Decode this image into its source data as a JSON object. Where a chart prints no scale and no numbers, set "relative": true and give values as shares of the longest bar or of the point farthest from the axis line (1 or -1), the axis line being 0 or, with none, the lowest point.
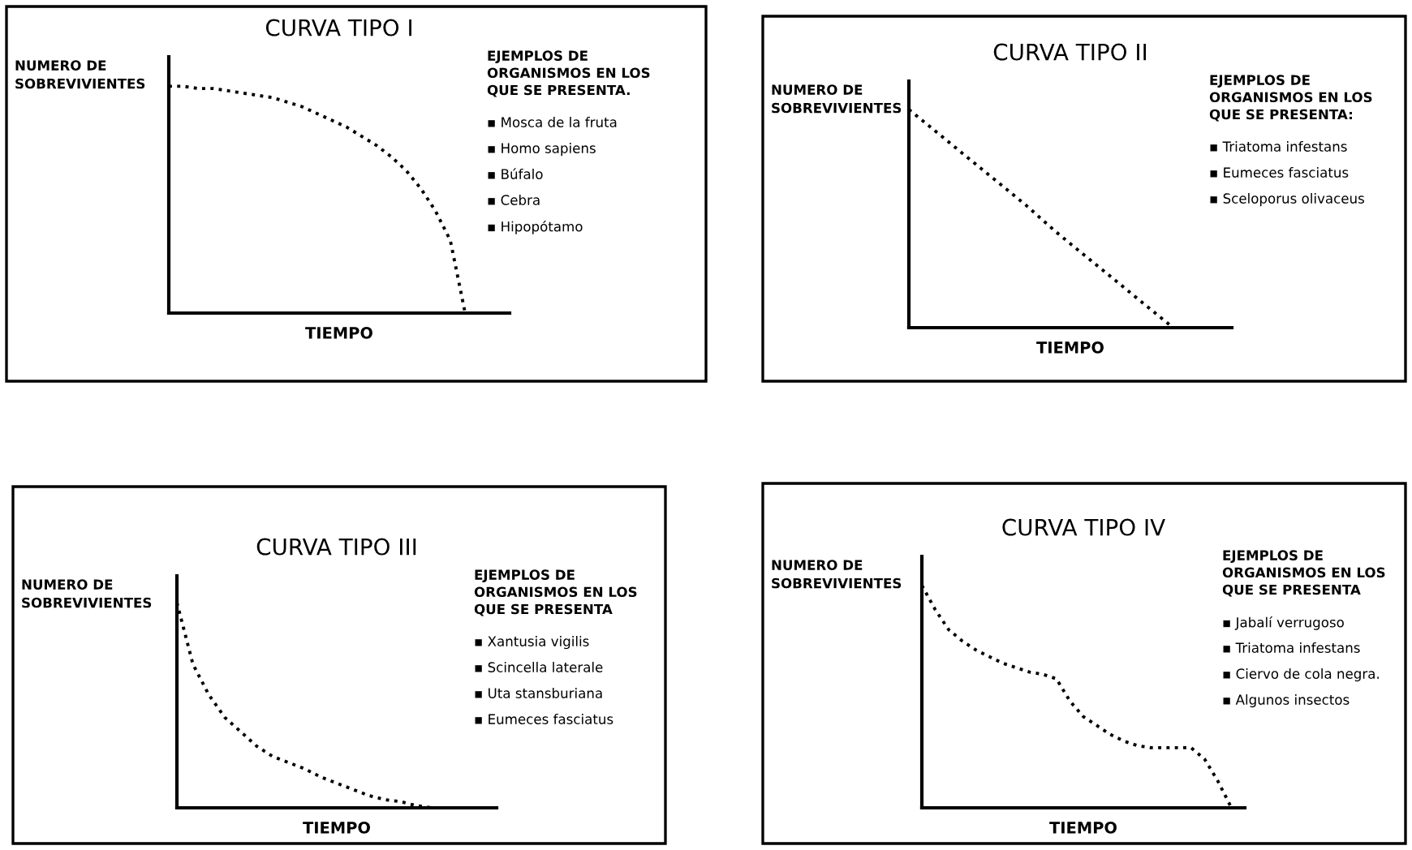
{
  "chart_data": [
    {
      "type": "line",
      "title": "CURVA TIPO I",
      "xlabel": "TIEMPO",
      "ylabel": "NUMERO DE\nSOBREVIVIENTES",
      "relative": true,
      "tick_labels": false,
      "line_style": "dotted",
      "categories": [
        null,
        null,
        null,
        null,
        null,
        null,
        null,
        null,
        null,
        null,
        null,
        null,
        null,
        null,
        null,
        null,
        null,
        null,
        null,
        null,
        null,
        null,
        null,
        null
      ],
      "series": [
        {
          "color": "#000000",
          "values": [
            1.0,
            1.0,
            0.99,
            0.99,
            0.98,
            0.97,
            0.96,
            0.95,
            0.93,
            0.91,
            0.88,
            0.85,
            0.82,
            0.78,
            0.74,
            0.69,
            0.63,
            0.55,
            0.45,
            0.32,
            0.0,
            null,
            null,
            null
          ]
        }
      ],
      "annotations": [
        "EJEMPLOS DE\nORGANISMOS EN LOS\nQUE SE PRESENTA.",
        "▪ Mosca de la fruta",
        "▪ Homo sapiens",
        "▪ Búfalo",
        "▪ Cebra",
        "▪ Hipopótamo"
      ]
    },
    {
      "type": "line",
      "title": "CURVA TIPO II",
      "xlabel": "TIEMPO",
      "ylabel": "NUMERO DE\nSOBREVIVIENTES",
      "relative": true,
      "tick_labels": false,
      "line_style": "dotted",
      "categories": [
        null,
        null,
        null,
        null,
        null,
        null,
        null,
        null,
        null,
        null,
        null,
        null
      ],
      "series": [
        {
          "color": "#000000",
          "values": [
            1.0,
            0.89,
            0.78,
            0.67,
            0.56,
            0.44,
            0.33,
            0.22,
            0.11,
            0.0,
            null,
            null
          ]
        }
      ],
      "annotations": [
        "EJEMPLOS DE\nORGANISMOS EN LOS\nQUE SE PRESENTA:",
        "▪ Triatoma infestans",
        "▪ Eumeces fasciatus",
        "▪ Sceloporus olivaceus"
      ]
    },
    {
      "type": "line",
      "title": "CURVA TIPO III",
      "xlabel": "TIEMPO",
      "ylabel": "NUMERO DE\nSOBREVIVIENTES",
      "relative": true,
      "tick_labels": false,
      "line_style": "dotted",
      "categories": [
        null,
        null,
        null,
        null,
        null,
        null,
        null,
        null,
        null,
        null,
        null,
        null,
        null,
        null,
        null,
        null,
        null,
        null,
        null,
        null,
        null
      ],
      "series": [
        {
          "color": "#000000",
          "values": [
            1.0,
            0.7,
            0.55,
            0.44,
            0.37,
            0.3,
            0.25,
            0.22,
            0.19,
            0.15,
            0.12,
            0.09,
            0.06,
            0.04,
            0.03,
            0.01,
            0.0,
            null,
            null,
            null,
            null
          ]
        }
      ],
      "annotations": [
        "EJEMPLOS DE\nORGANISMOS EN LOS\nQUE SE PRESENTA",
        "▪ Xantusia vigilis",
        "▪ Scincella laterale",
        "▪ Uta stansburiana",
        "▪ Eumeces fasciatus"
      ]
    },
    {
      "type": "line",
      "title": "CURVA TIPO IV",
      "xlabel": "TIEMPO",
      "ylabel": "NUMERO DE\nSOBREVIVIENTES",
      "relative": true,
      "tick_labels": false,
      "line_style": "dotted",
      "categories": [
        null,
        null,
        null,
        null,
        null,
        null,
        null,
        null,
        null,
        null,
        null,
        null,
        null,
        null,
        null,
        null,
        null,
        null,
        null,
        null,
        null,
        null,
        null,
        null,
        null
      ],
      "series": [
        {
          "color": "#000000",
          "values": [
            1.0,
            0.89,
            0.8,
            0.75,
            0.71,
            0.68,
            0.65,
            0.63,
            0.61,
            0.6,
            0.58,
            0.48,
            0.41,
            0.37,
            0.33,
            0.3,
            0.28,
            0.27,
            0.27,
            0.27,
            0.27,
            0.22,
            0.12,
            0.0,
            null
          ]
        }
      ],
      "annotations": [
        "EJEMPLOS DE\nORGANISMOS EN LOS\nQUE SE PRESENTA",
        "▪ Jabalí verrugoso",
        "▪ Triatoma infestans",
        "▪ Ciervo de cola negra.",
        "▪ Algunos insectos"
      ]
    }
  ]
}
